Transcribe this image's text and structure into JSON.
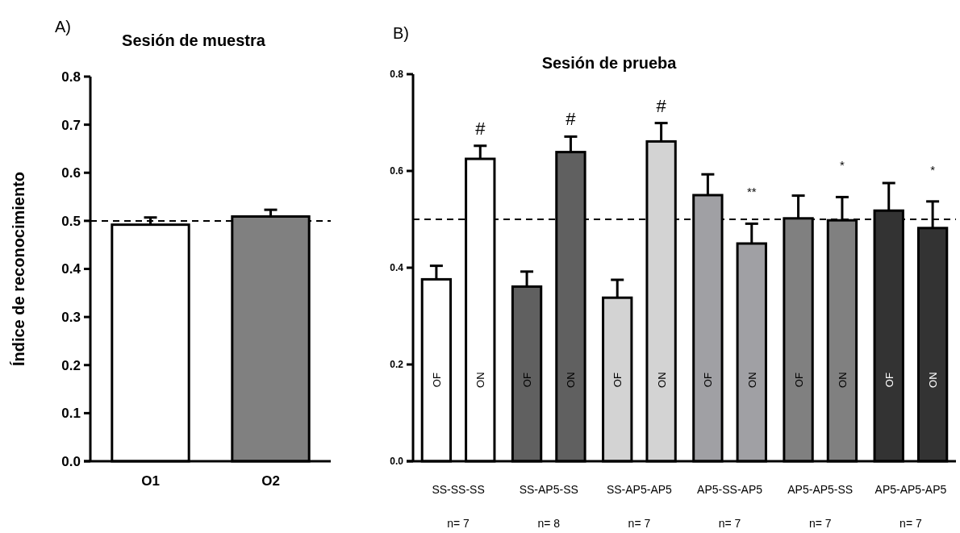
{
  "chart_data": [
    {
      "type": "bar",
      "title": "Sesión de muestra",
      "ylabel": "Índice de reconocimiento",
      "categories": [
        "O1",
        "O2"
      ],
      "values": [
        0.492,
        0.509
      ],
      "colors": [
        "#ffffff",
        "#808080"
      ],
      "errors": [
        [
          0.492,
          0.507
        ],
        [
          0.509,
          0.523
        ]
      ],
      "ylim": [
        0,
        0.8
      ],
      "yticks": [
        {
          "value": 0,
          "label": "0.0"
        },
        0.1,
        0.2,
        0.3,
        0.4,
        0.5,
        0.6,
        0.7,
        0.8
      ],
      "ref_lines": [
        {
          "axis": "y",
          "value": 0.5,
          "line_style": "dashed"
        }
      ],
      "annotations": [
        "A)"
      ]
    },
    {
      "type": "bar",
      "title": "Sesión de prueba",
      "categories": [
        "SS-SS-SS",
        "SS-AP5-SS",
        "SS-AP5-AP5",
        "AP5-SS-AP5",
        "AP5-AP5-SS",
        "AP5-AP5-AP5"
      ],
      "series": [
        {
          "name": "OF",
          "colors": [
            "#ffffff",
            "#606060",
            "#d3d3d3",
            "#a0a0a4",
            "#808080",
            "#333333"
          ],
          "values": [
            0.376,
            0.361,
            0.338,
            0.55,
            0.502,
            0.518
          ],
          "errors": [
            [
              0.376,
              0.404
            ],
            [
              0.361,
              0.392
            ],
            [
              0.338,
              0.375
            ],
            [
              0.55,
              0.593
            ],
            [
              0.502,
              0.549
            ],
            [
              0.518,
              0.575
            ]
          ]
        },
        {
          "name": "ON",
          "colors": [
            "#ffffff",
            "#606060",
            "#d3d3d3",
            "#a0a0a4",
            "#808080",
            "#333333"
          ],
          "values": [
            0.625,
            0.639,
            0.661,
            0.45,
            0.498,
            0.482
          ],
          "errors": [
            [
              0.625,
              0.652
            ],
            [
              0.639,
              0.671
            ],
            [
              0.661,
              0.699
            ],
            [
              0.45,
              0.491
            ],
            [
              0.498,
              0.546
            ],
            [
              0.482,
              0.537
            ]
          ]
        }
      ],
      "ylim": [
        0,
        0.8
      ],
      "yticks": [
        {
          "value": 0,
          "label": "0.0"
        },
        0.2,
        0.4,
        0.6,
        0.8
      ],
      "ref_lines": [
        {
          "axis": "y",
          "value": 0.5,
          "line_style": "dashed"
        }
      ],
      "annotations": [
        "B)",
        "#",
        "#",
        "#",
        "**",
        "*",
        "*",
        "n= 7",
        "n= 8",
        "n= 7",
        "n= 7",
        "n= 7",
        "n= 7"
      ]
    }
  ]
}
